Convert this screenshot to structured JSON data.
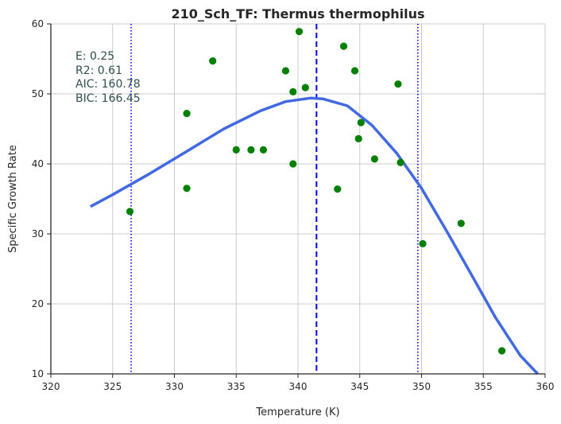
{
  "chart_data": {
    "type": "scatter",
    "title": "210_Sch_TF: Thermus thermophilus",
    "xlabel": "Temperature (K)",
    "ylabel": "Specific Growth Rate",
    "xlim": [
      320,
      360
    ],
    "ylim": [
      10,
      60
    ],
    "xticks": [
      320,
      325,
      330,
      335,
      340,
      345,
      350,
      355,
      360
    ],
    "yticks": [
      10,
      20,
      30,
      40,
      50,
      60
    ],
    "grid": true,
    "stats": [
      "E:  0.25",
      "R2:  0.61",
      "AIC: 160.78",
      "BIC: 166.45"
    ],
    "points": {
      "color": "#008000",
      "x": [
        326.4,
        331.0,
        331.0,
        333.1,
        335.0,
        336.2,
        337.2,
        339.0,
        339.6,
        339.6,
        340.1,
        340.6,
        343.2,
        343.7,
        344.6,
        344.9,
        345.1,
        346.2,
        348.1,
        348.3,
        350.1,
        353.2,
        356.5
      ],
      "y": [
        33.2,
        47.2,
        36.5,
        54.7,
        42.0,
        42.0,
        42.0,
        53.3,
        50.3,
        40.0,
        58.9,
        50.9,
        36.4,
        56.8,
        53.3,
        43.6,
        45.9,
        40.7,
        51.4,
        40.2,
        28.6,
        31.5,
        13.3
      ]
    },
    "fit_curve": {
      "color": "#4169e1",
      "x": [
        323.2,
        325,
        328,
        331,
        334,
        337,
        339,
        341,
        342,
        344,
        346,
        348,
        350,
        352,
        354,
        356,
        358,
        359.4
      ],
      "y": [
        33.9,
        35.6,
        38.6,
        41.8,
        45.0,
        47.6,
        48.9,
        49.4,
        49.3,
        48.3,
        45.5,
        41.5,
        36.5,
        30.5,
        24.3,
        18.0,
        12.6,
        10.0
      ]
    },
    "vlines": [
      {
        "x": 326.5,
        "style": "dotted",
        "color": "#0000ff"
      },
      {
        "x": 341.5,
        "style": "dashed",
        "color": "#0000ff"
      },
      {
        "x": 349.7,
        "style": "dotted",
        "color": "#0000ff"
      }
    ]
  }
}
